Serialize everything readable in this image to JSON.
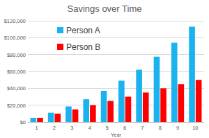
{
  "chart_data": {
    "type": "bar",
    "title": "Savings over Time",
    "x_label": "Year",
    "categories": [
      "1",
      "2",
      "3",
      "4",
      "5",
      "6",
      "7",
      "8",
      "9",
      "10"
    ],
    "series": [
      {
        "name": "Person A",
        "color": "#1ab2ef",
        "values": [
          5000,
          11000,
          18500,
          27000,
          37000,
          49000,
          62000,
          77500,
          94000,
          113000
        ]
      },
      {
        "name": "Person B",
        "color": "#ff0000",
        "values": [
          5000,
          10000,
          15000,
          20000,
          25000,
          30000,
          35000,
          40000,
          45000,
          50000
        ]
      }
    ],
    "ylim": [
      0,
      120000
    ],
    "yticks": [
      {
        "value": 0,
        "label": "$0"
      },
      {
        "value": 20000,
        "label": "$20,000"
      },
      {
        "value": 40000,
        "label": "$40,000"
      },
      {
        "value": 60000,
        "label": "$60,000"
      },
      {
        "value": 80000,
        "label": "$80,000"
      },
      {
        "value": 100000,
        "label": "$100,000"
      },
      {
        "value": 120000,
        "label": "$120,000"
      }
    ],
    "grid": true,
    "legend": "upper left"
  }
}
